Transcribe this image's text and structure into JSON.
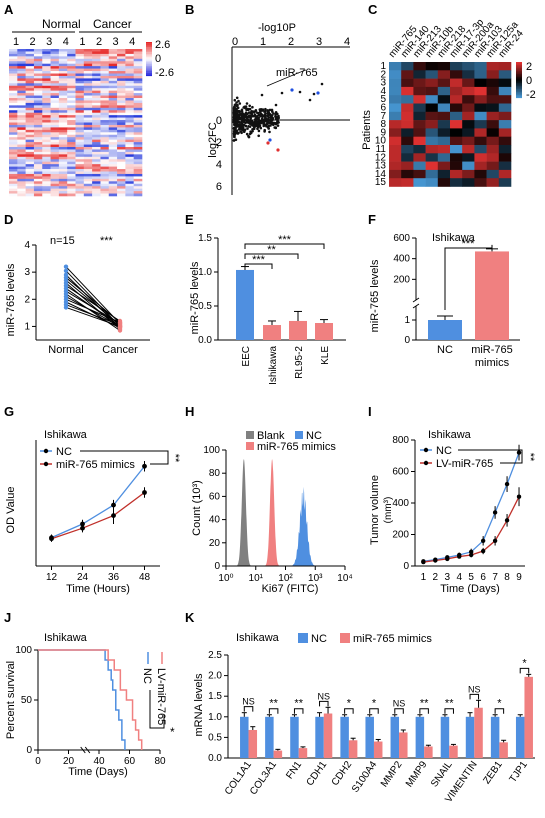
{
  "colors": {
    "blue": "#4f8fe0",
    "red": "#f08080",
    "darkred": "#c0302a",
    "gray": "#808080",
    "black": "#000000"
  },
  "panels": {
    "A": {
      "letter": "A",
      "group1": "Normal",
      "group2": "Cancer",
      "cols": [
        "1",
        "2",
        "3",
        "4",
        "1",
        "2",
        "3",
        "4"
      ],
      "scale": [
        "2.6",
        "0",
        "-2.6"
      ]
    },
    "B": {
      "letter": "B",
      "top_label": "-log10P",
      "x_ticks": [
        "0",
        "1",
        "2",
        "3",
        "4"
      ],
      "y_label": "log2FC",
      "y_ticks": [
        "0",
        "2",
        "4",
        "6"
      ],
      "callout": "miR-765"
    },
    "C": {
      "letter": "C",
      "mirs": [
        "miR-765",
        "miR-140",
        "miR-213",
        "miR-10b",
        "miR-218",
        "miR-17-3p",
        "miR-200a",
        "miR-103",
        "miR-125a",
        "miR-24"
      ],
      "patients": [
        "1",
        "2",
        "3",
        "4",
        "5",
        "6",
        "7",
        "8",
        "9",
        "10",
        "11",
        "12",
        "13",
        "14",
        "15"
      ],
      "y_label": "Patients",
      "scale": [
        "2",
        "0",
        "-2"
      ]
    },
    "D": {
      "letter": "D",
      "n": "n=15",
      "sig": "***",
      "y_label": "miR-765 levels",
      "y_ticks": [
        "1",
        "2",
        "3",
        "4"
      ],
      "x_labels": [
        "Normal",
        "Cancer"
      ]
    },
    "E": {
      "letter": "E",
      "y_label": "miR-765 levels",
      "y_ticks": [
        "0.0",
        "0.5",
        "1.0",
        "1.5"
      ],
      "sig": [
        "***",
        "**",
        "***"
      ]
    },
    "F": {
      "letter": "F",
      "title": "Ishikawa",
      "y_label": "miR-765 levels",
      "y_ticks": [
        "0",
        "1",
        "200",
        "400",
        "600"
      ],
      "sig": "***",
      "x_labels": [
        "NC",
        "miR-765\nmimics"
      ]
    },
    "G": {
      "letter": "G",
      "title": "Ishikawa",
      "y_label": "OD Value",
      "x_label": "Time (Hours)",
      "legend": [
        "NC",
        "miR-765 mimics"
      ],
      "sig": "**"
    },
    "H": {
      "letter": "H",
      "y_label": "Count (10³)",
      "x_label": "Ki67 (FITC)",
      "y_ticks": [
        "0",
        "20",
        "40",
        "60",
        "80",
        "100"
      ],
      "x_ticks": [
        "10⁰",
        "10¹",
        "10²",
        "10³",
        "10⁴"
      ],
      "legend": [
        "Blank",
        "NC",
        "miR-765 mimics"
      ]
    },
    "I": {
      "letter": "I",
      "title": "Ishikawa",
      "y_label": "Tumor volume",
      "y_label2": "(mm³)",
      "x_label": "Time (Days)",
      "y_ticks": [
        "0",
        "200",
        "400",
        "600",
        "800"
      ],
      "legend": [
        "NC",
        "LV-miR-765"
      ],
      "sig": "**"
    },
    "J": {
      "letter": "J",
      "title": "Ishikawa",
      "y_label": "Percent survival",
      "x_label": "Time (Days)",
      "y_ticks": [
        "0",
        "50",
        "100"
      ],
      "x_ticks": [
        "0",
        "20",
        "40",
        "60",
        "80"
      ],
      "legend": [
        "NC",
        "LV-miR-765"
      ],
      "sig": "*"
    },
    "K": {
      "letter": "K",
      "title": "Ishikawa",
      "legend": [
        "NC",
        "miR-765 mimics"
      ],
      "y_label": "mRNA levels",
      "y_ticks": [
        "0.0",
        "0.5",
        "1.0",
        "1.5",
        "2.0",
        "2.5"
      ]
    }
  },
  "chart_data": [
    {
      "panel": "D",
      "type": "line",
      "categories": [
        "Normal",
        "Cancer"
      ],
      "series": [
        {
          "values": [
            3.2,
            1.1
          ]
        },
        {
          "values": [
            3.05,
            1.0
          ]
        },
        {
          "values": [
            2.9,
            0.95
          ]
        },
        {
          "values": [
            2.8,
            1.15
          ]
        },
        {
          "values": [
            2.7,
            1.05
          ]
        },
        {
          "values": [
            2.6,
            0.9
          ]
        },
        {
          "values": [
            2.5,
            1.2
          ]
        },
        {
          "values": [
            2.4,
            1.0
          ]
        },
        {
          "values": [
            2.3,
            1.1
          ]
        },
        {
          "values": [
            2.2,
            0.85
          ]
        },
        {
          "values": [
            2.1,
            1.0
          ]
        },
        {
          "values": [
            2.0,
            1.15
          ]
        },
        {
          "values": [
            1.9,
            0.95
          ]
        },
        {
          "values": [
            1.8,
            1.05
          ]
        },
        {
          "values": [
            1.7,
            1.0
          ]
        }
      ],
      "ylim": [
        0.5,
        4
      ]
    },
    {
      "panel": "E",
      "type": "bar",
      "categories": [
        "EEC",
        "Ishikawa",
        "RL95-2",
        "KLE"
      ],
      "values": [
        1.03,
        0.22,
        0.28,
        0.25
      ],
      "errors": [
        0.05,
        0.06,
        0.14,
        0.05
      ],
      "ylim": [
        0,
        1.5
      ]
    },
    {
      "panel": "F",
      "type": "bar",
      "categories": [
        "NC",
        "miR-765\nmimics"
      ],
      "values": [
        1,
        470
      ],
      "errors": [
        0.2,
        25
      ]
    },
    {
      "panel": "G",
      "type": "line",
      "x": [
        12,
        24,
        36,
        48
      ],
      "series": [
        {
          "name": "NC",
          "values": [
            0.27,
            0.4,
            0.58,
            0.95
          ],
          "errors": [
            0.03,
            0.04,
            0.05,
            0.05
          ]
        },
        {
          "name": "miR-765 mimics",
          "values": [
            0.26,
            0.36,
            0.48,
            0.7
          ],
          "errors": [
            0.03,
            0.04,
            0.08,
            0.05
          ]
        }
      ],
      "xlim": [
        6,
        54
      ],
      "ylim": [
        0,
        1.2
      ]
    },
    {
      "panel": "H",
      "type": "area",
      "series": [
        {
          "name": "Blank",
          "center_log": 0.6,
          "width": 0.07,
          "peak": 92
        },
        {
          "name": "miR-765 mimics",
          "center_log": 1.55,
          "width": 0.07,
          "peak": 92
        },
        {
          "name": "NC",
          "center_log": 2.6,
          "width": 0.12,
          "peak": 60
        }
      ],
      "xlim": [
        0,
        4
      ],
      "ylim": [
        0,
        100
      ]
    },
    {
      "panel": "I",
      "type": "line",
      "x": [
        1,
        2,
        3,
        4,
        5,
        6,
        7,
        8,
        9
      ],
      "series": [
        {
          "name": "NC",
          "values": [
            30,
            40,
            55,
            70,
            90,
            160,
            340,
            520,
            720
          ],
          "errors": [
            10,
            10,
            12,
            15,
            20,
            30,
            40,
            50,
            50
          ]
        },
        {
          "name": "LV-miR-765",
          "values": [
            25,
            35,
            45,
            60,
            70,
            95,
            160,
            290,
            440
          ],
          "errors": [
            10,
            10,
            12,
            12,
            15,
            20,
            30,
            40,
            60
          ]
        }
      ],
      "ylim": [
        0,
        800
      ]
    },
    {
      "panel": "J",
      "type": "line",
      "series": [
        {
          "name": "NC",
          "points": [
            [
              0,
              100
            ],
            [
              44,
              100
            ],
            [
              44,
              90
            ],
            [
              46,
              90
            ],
            [
              46,
              80
            ],
            [
              48,
              80
            ],
            [
              48,
              70
            ],
            [
              49,
              70
            ],
            [
              49,
              60
            ],
            [
              51,
              60
            ],
            [
              51,
              40
            ],
            [
              53,
              40
            ],
            [
              53,
              30
            ],
            [
              55,
              30
            ],
            [
              55,
              10
            ],
            [
              57,
              10
            ],
            [
              57,
              0
            ]
          ]
        },
        {
          "name": "LV-miR-765",
          "points": [
            [
              0,
              100
            ],
            [
              46,
              100
            ],
            [
              46,
              90
            ],
            [
              50,
              90
            ],
            [
              50,
              80
            ],
            [
              54,
              80
            ],
            [
              54,
              60
            ],
            [
              58,
              60
            ],
            [
              58,
              50
            ],
            [
              62,
              50
            ],
            [
              62,
              30
            ],
            [
              64,
              30
            ],
            [
              64,
              20
            ],
            [
              66,
              20
            ],
            [
              66,
              10
            ],
            [
              68,
              10
            ],
            [
              68,
              0
            ]
          ]
        }
      ],
      "xlim": [
        0,
        80
      ],
      "ylim": [
        0,
        100
      ]
    },
    {
      "panel": "K",
      "type": "bar",
      "categories": [
        "COL1A1",
        "COL3A1",
        "FN1",
        "CDH1",
        "CDH2",
        "S100A4",
        "MMP2",
        "MMP9",
        "SNAIL",
        "VIMENTIN",
        "ZEB1",
        "TJP1"
      ],
      "series": [
        {
          "name": "NC",
          "values": [
            1,
            1,
            1,
            1,
            1,
            1,
            1,
            1,
            1,
            1,
            1,
            1
          ],
          "errors": [
            0.1,
            0.05,
            0.05,
            0.1,
            0.05,
            0.05,
            0.05,
            0.05,
            0.05,
            0.1,
            0.05,
            0.05
          ]
        },
        {
          "name": "miR-765 mimics",
          "values": [
            0.68,
            0.18,
            0.24,
            1.08,
            0.43,
            0.4,
            0.62,
            0.28,
            0.3,
            1.22,
            0.38,
            1.97
          ],
          "errors": [
            0.08,
            0.03,
            0.03,
            0.15,
            0.05,
            0.05,
            0.06,
            0.03,
            0.03,
            0.18,
            0.05,
            0.06
          ]
        }
      ],
      "sig": [
        "NS",
        "**",
        "**",
        "NS",
        "*",
        "*",
        "NS",
        "**",
        "**",
        "NS",
        "*",
        "*"
      ],
      "ylim": [
        0,
        2.5
      ]
    }
  ]
}
